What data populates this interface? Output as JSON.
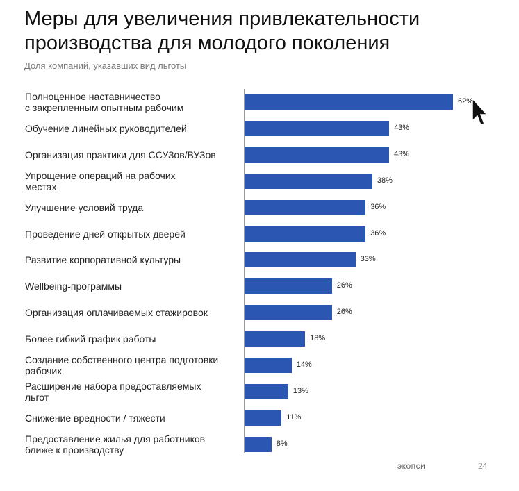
{
  "chart_data": {
    "type": "bar",
    "title": "Меры для увеличения привлекательности производства для молодого поколения",
    "subtitle": "Доля компаний, указавших вид льготы",
    "orientation": "horizontal",
    "color": "#2b56b2",
    "categories": [
      "Полноценное наставничество\nс закрепленным опытным рабочим",
      "Обучение линейных руководителей",
      "Организация практики для ССУЗов/ВУЗов",
      "Упрощение операций на рабочих\nместах",
      "Улучшение условий труда",
      "Проведение дней открытых дверей",
      "Развитие корпоративной культуры",
      "Wellbeing-программы",
      "Организация оплачиваемых стажировок",
      "Более гибкий график работы",
      "Создание собственного центра подготовки\nрабочих",
      "Расширение набора предоставляемых\nльгот",
      "Снижение вредности / тяжести",
      "Предоставление жилья для работников\nближе к производству"
    ],
    "values": [
      62,
      43,
      43,
      38,
      36,
      36,
      33,
      26,
      26,
      18,
      14,
      13,
      11,
      8
    ],
    "value_labels": [
      "62%",
      "43%",
      "43%",
      "38%",
      "36%",
      "36%",
      "33%",
      "26%",
      "26%",
      "18%",
      "14%",
      "13%",
      "11%",
      "8%"
    ],
    "footer": "экопси",
    "page_number": "24"
  }
}
